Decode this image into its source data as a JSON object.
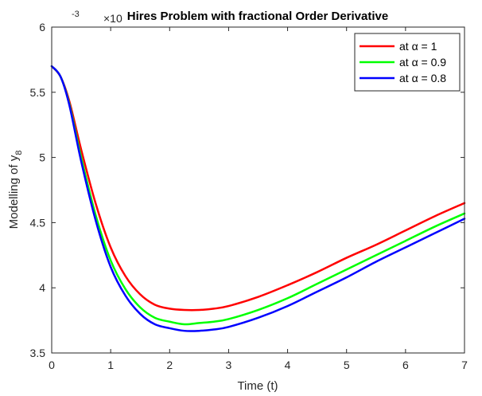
{
  "chart_data": {
    "type": "line",
    "title": "Hires Problem with fractional Order Derivative",
    "xlabel": "Time (t)",
    "ylabel": "Modelling of y",
    "ylabel_subscript": "8",
    "y_exponent_base": "×10",
    "y_exponent_power": "-3",
    "xlim": [
      0,
      7
    ],
    "ylim": [
      3.5,
      6
    ],
    "y_scale_factor": 0.001,
    "x_ticks": [
      "0",
      "1",
      "2",
      "3",
      "4",
      "5",
      "6",
      "7"
    ],
    "y_ticks": [
      "3.5",
      "4",
      "4.5",
      "5",
      "5.5",
      "6"
    ],
    "legend_position": "top-right",
    "grid": false,
    "x": [
      0,
      0.15,
      0.3,
      0.5,
      0.75,
      1.0,
      1.25,
      1.5,
      1.75,
      2.0,
      2.25,
      2.5,
      2.75,
      3.0,
      3.5,
      4.0,
      4.5,
      5.0,
      5.5,
      6.0,
      6.5,
      7.0
    ],
    "series": [
      {
        "name": "at α = 1",
        "color": "#ff0000",
        "values": [
          5.7,
          5.62,
          5.43,
          5.06,
          4.64,
          4.31,
          4.09,
          3.95,
          3.87,
          3.84,
          3.83,
          3.83,
          3.84,
          3.86,
          3.93,
          4.02,
          4.12,
          4.23,
          4.33,
          4.44,
          4.55,
          4.65
        ]
      },
      {
        "name": "at α = 0.9",
        "color": "#00ff00",
        "values": [
          5.7,
          5.62,
          5.41,
          5.0,
          4.55,
          4.21,
          3.99,
          3.85,
          3.77,
          3.74,
          3.72,
          3.73,
          3.74,
          3.76,
          3.83,
          3.92,
          4.03,
          4.14,
          4.25,
          4.36,
          4.47,
          4.57
        ]
      },
      {
        "name": "at α = 0.8",
        "color": "#0000ff",
        "values": [
          5.7,
          5.62,
          5.4,
          4.97,
          4.51,
          4.16,
          3.94,
          3.8,
          3.72,
          3.69,
          3.67,
          3.67,
          3.68,
          3.7,
          3.77,
          3.86,
          3.97,
          4.08,
          4.2,
          4.31,
          4.42,
          4.53
        ]
      }
    ]
  }
}
